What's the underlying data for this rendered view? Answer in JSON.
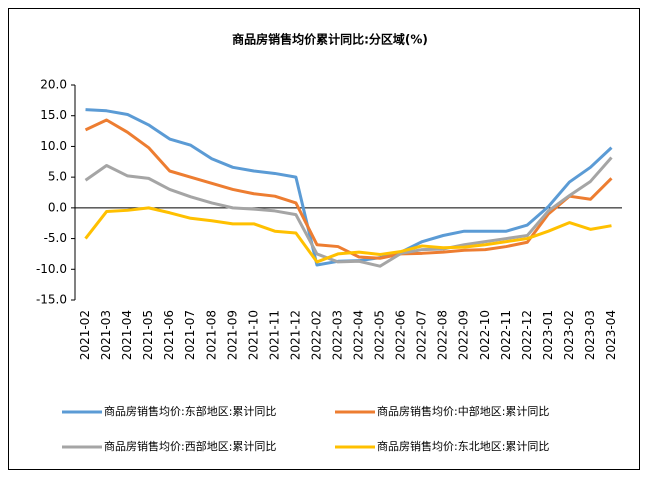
{
  "chart_data": {
    "type": "line",
    "title": "商品房销售均价累计同比:分区域(%)",
    "categories": [
      "2021-02",
      "2021-03",
      "2021-04",
      "2021-05",
      "2021-06",
      "2021-07",
      "2021-08",
      "2021-09",
      "2021-10",
      "2021-11",
      "2021-12",
      "2022-02",
      "2022-03",
      "2022-04",
      "2022-05",
      "2022-06",
      "2022-07",
      "2022-08",
      "2022-09",
      "2022-10",
      "2022-11",
      "2022-12",
      "2023-01",
      "2023-02",
      "2023-03",
      "2023-04"
    ],
    "series": [
      {
        "name": "商品房销售均价:东部地区:累计同比",
        "color": "#5b9bd5",
        "values": [
          16,
          15.8,
          15.2,
          13.5,
          11.2,
          10.2,
          8,
          6.6,
          6,
          5.6,
          5,
          -9.3,
          -8.7,
          -8.6,
          -8.1,
          -7.2,
          -5.5,
          -4.5,
          -3.8,
          -3.8,
          -3.8,
          -2.8,
          0.2,
          4.2,
          6.6,
          9.8
        ]
      },
      {
        "name": "商品房销售均价:中部地区:累计同比",
        "color": "#ed7d31",
        "values": [
          12.7,
          14.3,
          12.3,
          9.8,
          6,
          5,
          4,
          3,
          2.3,
          1.9,
          0.8,
          -6,
          -6.3,
          -8,
          -8.2,
          -7.5,
          -7.4,
          -7.2,
          -6.9,
          -6.8,
          -6.3,
          -5.6,
          -1,
          1.9,
          1.4,
          4.8
        ]
      },
      {
        "name": "商品房销售均价:西部地区:累计同比",
        "color": "#a5a5a5",
        "values": [
          4.5,
          6.9,
          5.2,
          4.8,
          3,
          1.8,
          0.8,
          0,
          -0.2,
          -0.5,
          -1.1,
          -7.5,
          -8.8,
          -8.7,
          -9.5,
          -7.4,
          -6.8,
          -6.7,
          -6,
          -5.5,
          -5,
          -4.5,
          -0.5,
          2,
          4.3,
          8.2
        ]
      },
      {
        "name": "商品房销售均价:东北地区:累计同比",
        "color": "#ffc000",
        "values": [
          -5,
          -0.6,
          -0.4,
          0,
          -0.8,
          -1.7,
          -2.1,
          -2.6,
          -2.6,
          -3.8,
          -4.1,
          -8.8,
          -7.5,
          -7.2,
          -7.6,
          -7.1,
          -6.2,
          -6.5,
          -6.4,
          -6,
          -5.5,
          -5,
          -3.8,
          -2.4,
          -3.5,
          -2.9
        ]
      }
    ],
    "ylim": [
      -15,
      20
    ],
    "yticks": [
      {
        "value": -15,
        "label": "-15.0"
      },
      {
        "value": -10,
        "label": "-10.0"
      },
      {
        "value": -5,
        "label": "-5.0"
      },
      {
        "value": 0,
        "label": "0.0"
      },
      {
        "value": 5,
        "label": "5.0"
      },
      {
        "value": 10,
        "label": "10.0"
      },
      {
        "value": 15,
        "label": "15.0"
      },
      {
        "value": 20,
        "label": "20.0"
      }
    ],
    "legend": "bottom"
  }
}
